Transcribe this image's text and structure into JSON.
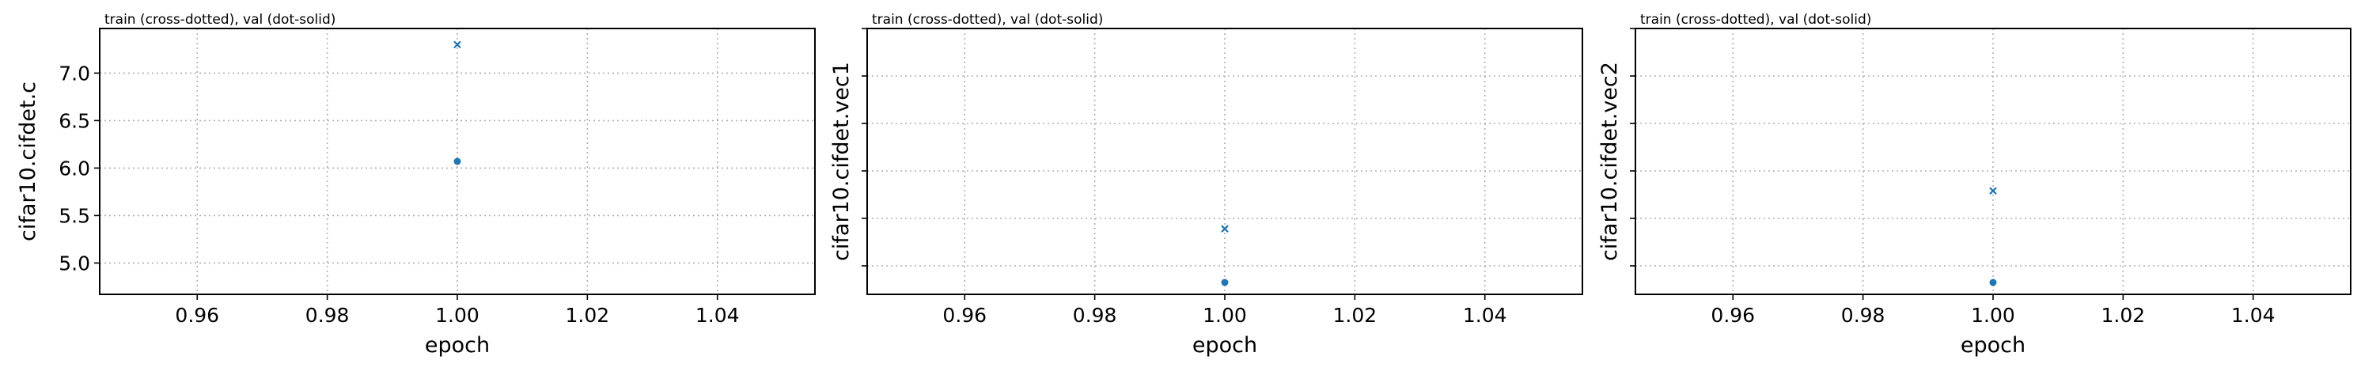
{
  "chart_data": [
    {
      "type": "scatter",
      "annotation": "train (cross-dotted), val (dot-solid)",
      "xlabel": "epoch",
      "ylabel": "cifar10.cifdet.c",
      "xlim": [
        0.945,
        1.055
      ],
      "ylim": [
        4.67,
        7.47
      ],
      "xticks": [
        0.96,
        0.98,
        1.0,
        1.02,
        1.04
      ],
      "xtick_labels": [
        "0.96",
        "0.98",
        "1.00",
        "1.02",
        "1.04"
      ],
      "yticks": [
        5.0,
        5.5,
        6.0,
        6.5,
        7.0
      ],
      "ytick_labels": [
        "5.0",
        "5.5",
        "6.0",
        "6.5",
        "7.0"
      ],
      "grid": true,
      "series": [
        {
          "marker": "x",
          "color": "#1f77b4",
          "x": [
            1.0
          ],
          "y": [
            7.3
          ]
        },
        {
          "marker": "o",
          "color": "#1f77b4",
          "x": [
            1.0
          ],
          "y": [
            6.07
          ]
        }
      ]
    },
    {
      "type": "scatter",
      "annotation": "train (cross-dotted), val (dot-solid)",
      "xlabel": "epoch",
      "ylabel": "cifar10.cifdet.vec1",
      "xlim": [
        0.945,
        1.055
      ],
      "ylim": [
        0,
        5.6
      ],
      "xticks": [
        0.96,
        0.98,
        1.0,
        1.02,
        1.04
      ],
      "xtick_labels": [
        "0.96",
        "0.98",
        "1.00",
        "1.02",
        "1.04"
      ],
      "yticks": [
        0.6,
        1.6,
        2.6,
        3.6,
        4.6,
        5.6
      ],
      "ytick_labels": [
        "",
        "",
        "",
        "",
        "",
        ""
      ],
      "grid": true,
      "series": [
        {
          "marker": "x",
          "color": "#1f77b4",
          "x": [
            1.0
          ],
          "y": [
            1.38
          ]
        },
        {
          "marker": "o",
          "color": "#1f77b4",
          "x": [
            1.0
          ],
          "y": [
            0.25
          ]
        }
      ]
    },
    {
      "type": "scatter",
      "annotation": "train (cross-dotted), val (dot-solid)",
      "xlabel": "epoch",
      "ylabel": "cifar10.cifdet.vec2",
      "xlim": [
        0.945,
        1.055
      ],
      "ylim": [
        0,
        5.6
      ],
      "xticks": [
        0.96,
        0.98,
        1.0,
        1.02,
        1.04
      ],
      "xtick_labels": [
        "0.96",
        "0.98",
        "1.00",
        "1.02",
        "1.04"
      ],
      "yticks": [
        0.6,
        1.6,
        2.6,
        3.6,
        4.6,
        5.6
      ],
      "ytick_labels": [
        "",
        "",
        "",
        "",
        "",
        ""
      ],
      "grid": true,
      "series": [
        {
          "marker": "x",
          "color": "#1f77b4",
          "x": [
            1.0
          ],
          "y": [
            2.18
          ]
        },
        {
          "marker": "o",
          "color": "#1f77b4",
          "x": [
            1.0
          ],
          "y": [
            0.25
          ]
        }
      ]
    }
  ]
}
